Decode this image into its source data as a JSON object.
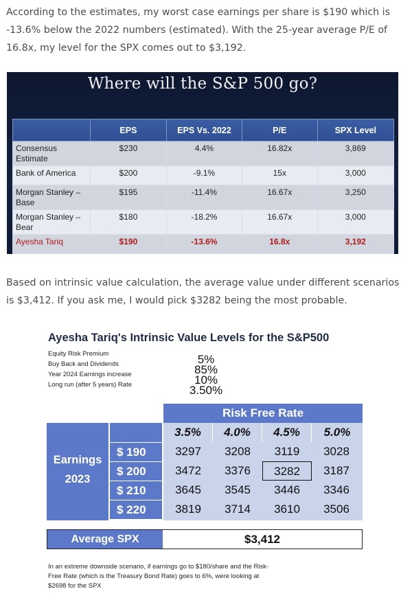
{
  "paragraphs": {
    "p1": "According to the estimates, my worst case earnings per share is $190 which is -13.6% below the 2022 numbers (estimated). With the 25-year average P/E of 16.8x, my level for the SPX comes out to $3,192.",
    "p2": "Based on intrinsic value calculation, the average value under different scenarios is $3,412. If you ask me, I would pick $3282 being the most probable."
  },
  "slide": {
    "title": "Where will the S&P 500 go?",
    "headers": [
      "",
      "EPS",
      "EPS Vs. 2022",
      "P/E",
      "SPX Level"
    ],
    "rows": [
      [
        "Consensus Estimate",
        "$230",
        "4.4%",
        "16.82x",
        "3,869"
      ],
      [
        "Bank of America",
        "$200",
        "-9.1%",
        "15x",
        "3,000"
      ],
      [
        "Morgan Stanley – Base",
        "$195",
        "-11.4%",
        "16.67x",
        "3,250"
      ],
      [
        "Morgan Stanley – Bear",
        "$180",
        "-18.2%",
        "16.67x",
        "3,000"
      ],
      [
        "Ayesha Tariq",
        "$190",
        "-13.6%",
        "16.8x",
        "3,192"
      ]
    ]
  },
  "figure": {
    "title": "Ayesha Tariq's Intrinsic Value Levels for the S&P500",
    "assumptions": [
      {
        "label": "Equity Risk Premium",
        "value": "5%"
      },
      {
        "label": "Buy Back and Dividends",
        "value": "85%"
      },
      {
        "label": "Year 2024 Earnings increase",
        "value": "10%"
      },
      {
        "label": "Long run (after 5 years) Rate",
        "value": "3.50%"
      }
    ],
    "risk_free_label": "Risk Free Rate",
    "rates": [
      "3.5%",
      "4.0%",
      "4.5%",
      "5.0%"
    ],
    "earnings_label_1": "Earnings",
    "earnings_label_2": "2023",
    "eps": [
      "$ 190",
      "$ 200",
      "$ 210",
      "$ 220"
    ],
    "values": [
      [
        "3297",
        "3208",
        "3119",
        "3028"
      ],
      [
        "3472",
        "3376",
        "3282",
        "3187"
      ],
      [
        "3645",
        "3545",
        "3446",
        "3346"
      ],
      [
        "3819",
        "3714",
        "3610",
        "3506"
      ]
    ],
    "highlighted": {
      "row": 1,
      "col": 2
    },
    "average_label": "Average SPX",
    "average_value": "$3,412",
    "note": "In an extreme downside scenario, if earnings go to $180/share and the Risk-Free Rate (which is the Treasury Bond Rate) goes to 6%, were looking at $2698 for the SPX"
  },
  "colors": {
    "slide_bg": "#0f1a33",
    "header_blue": "#2f4f93",
    "figure_blue": "#5b79c8",
    "figure_pale": "#c9d4ea",
    "highlight_red": "#b01c1c"
  }
}
